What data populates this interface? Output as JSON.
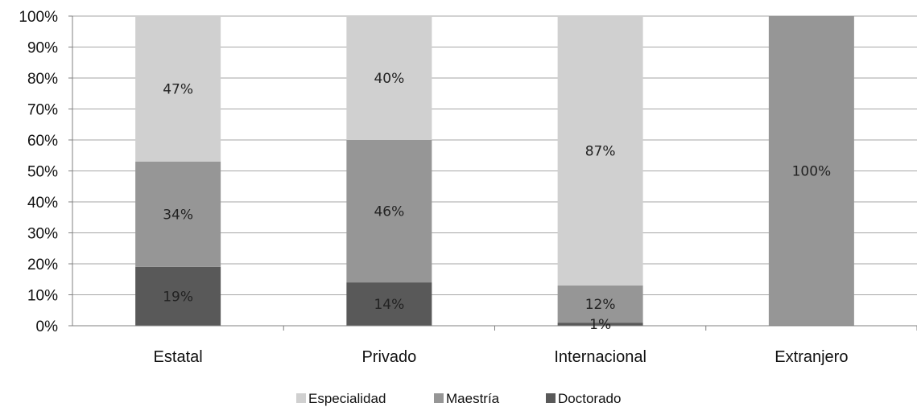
{
  "chart_data": {
    "type": "bar",
    "stacked": true,
    "percent_axis": true,
    "categories": [
      "Estatal",
      "Privado",
      "Internacional",
      "Extranjero"
    ],
    "series": [
      {
        "name": "Doctorado",
        "values": [
          19,
          14,
          1,
          0
        ],
        "labels": [
          "19%",
          "14%",
          "1%",
          ""
        ],
        "color": "#595959"
      },
      {
        "name": "Maestría",
        "values": [
          34,
          46,
          12,
          100
        ],
        "labels": [
          "34%",
          "46%",
          "12%",
          "100%"
        ],
        "color": "#969696"
      },
      {
        "name": "Especialidad",
        "values": [
          47,
          40,
          87,
          0
        ],
        "labels": [
          "47%",
          "40%",
          "87%",
          ""
        ],
        "color": "#d0d0d0"
      }
    ],
    "legend_order": [
      "Especialidad",
      "Maestría",
      "Doctorado"
    ],
    "ylim": [
      0,
      100
    ],
    "yticks": [
      "0%",
      "10%",
      "20%",
      "30%",
      "40%",
      "50%",
      "60%",
      "70%",
      "80%",
      "90%",
      "100%"
    ],
    "grid": true,
    "legend_position": "bottom",
    "title": "",
    "xlabel": "",
    "ylabel": ""
  }
}
